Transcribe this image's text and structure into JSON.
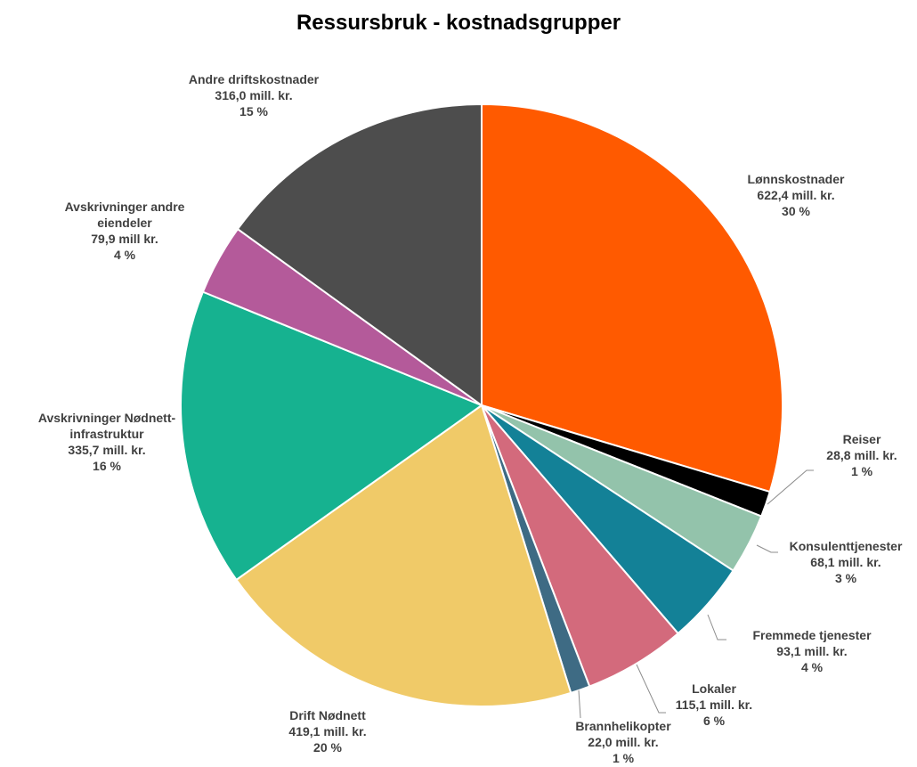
{
  "chart_data": {
    "type": "pie",
    "title": "Ressursbruk - kostnadsgrupper",
    "categories": [
      "Lønnskostnader",
      "Reiser",
      "Konsulenttjenester",
      "Fremmede tjenester",
      "Lokaler",
      "Brannhelikopter",
      "Drift Nødnett",
      "Avskrivninger Nødnett-infrastruktur",
      "Avskrivninger andre eiendeler",
      "Andre driftskostnader"
    ],
    "values": [
      622.4,
      28.8,
      68.1,
      93.1,
      115.1,
      22.0,
      419.1,
      335.7,
      79.9,
      316.0
    ],
    "value_labels": [
      "622,4 mill. kr.",
      "28,8 mill. kr.",
      "68,1 mill. kr.",
      "93,1 mill. kr.",
      "115,1 mill. kr.",
      "22,0 mill. kr.",
      "419,1 mill. kr.",
      "335,7 mill. kr.",
      "79,9 mill kr.",
      "316,0 mill. kr."
    ],
    "percent_labels": [
      "30 %",
      "1 %",
      "3 %",
      "4 %",
      "6 %",
      "1 %",
      "20 %",
      "16 %",
      "4 %",
      "15 %"
    ],
    "colors": [
      "#ff5a00",
      "#000000",
      "#93c3ab",
      "#138197",
      "#d36a7c",
      "#3e6b84",
      "#f0ca68",
      "#16b290",
      "#b45a9a",
      "#4d4d4d"
    ]
  }
}
